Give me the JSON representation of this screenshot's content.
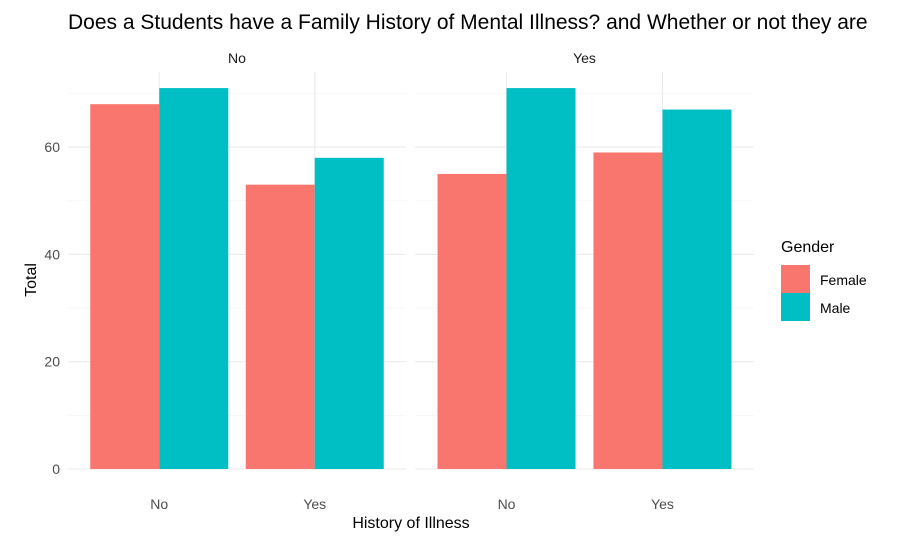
{
  "chart_data": {
    "type": "bar",
    "title": "Does a Students have a Family History of Mental Illness? and Whether or not they are",
    "xlabel": "History of Illness",
    "ylabel": "Total",
    "ylim": [
      0,
      74
    ],
    "yticks": [
      0,
      20,
      40,
      60
    ],
    "grid": true,
    "legend": {
      "title": "Gender",
      "position": "right"
    },
    "series": [
      {
        "name": "Female",
        "color": "#F8766D"
      },
      {
        "name": "Male",
        "color": "#00BFC4"
      }
    ],
    "facets": [
      {
        "label": "No",
        "categories": [
          "No",
          "Yes"
        ],
        "values": {
          "Female": [
            68,
            53
          ],
          "Male": [
            71,
            58
          ]
        }
      },
      {
        "label": "Yes",
        "categories": [
          "No",
          "Yes"
        ],
        "values": {
          "Female": [
            55,
            59
          ],
          "Male": [
            71,
            67
          ]
        }
      }
    ]
  }
}
